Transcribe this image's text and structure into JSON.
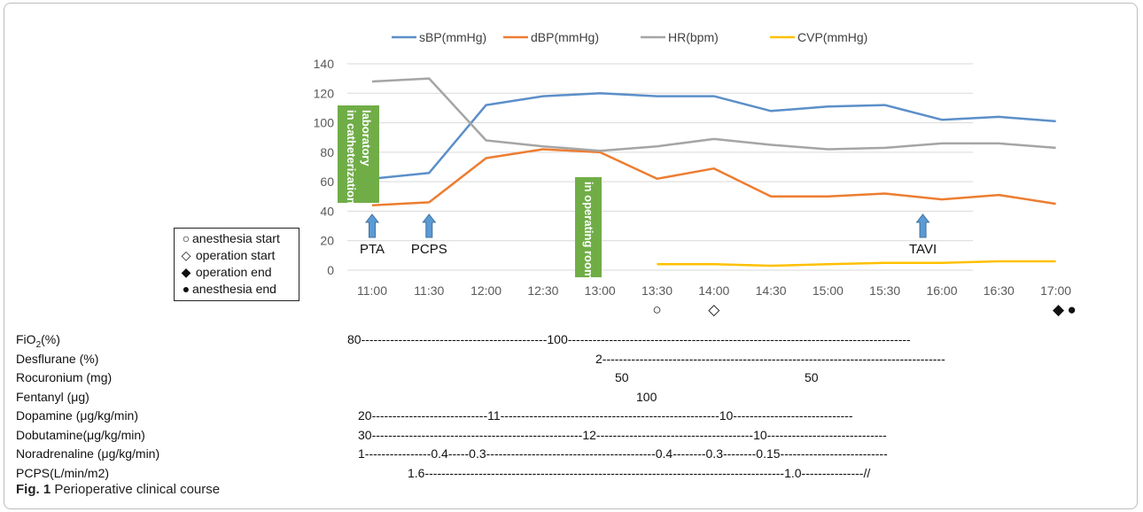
{
  "chart_data": {
    "type": "line",
    "categories": [
      "11:00",
      "11:30",
      "12:00",
      "12:30",
      "13:00",
      "13:30",
      "14:00",
      "14:30",
      "15:00",
      "15:30",
      "16:00",
      "16:30",
      "17:00"
    ],
    "y_ticks": [
      "0",
      "20",
      "40",
      "60",
      "80",
      "100",
      "120",
      "140"
    ],
    "ylim": [
      0,
      140
    ],
    "grid": true,
    "legend_position": "top",
    "series": [
      {
        "name": "sBP(mmHg)",
        "color": "#5b8fc9",
        "values": [
          62,
          66,
          112,
          118,
          120,
          118,
          118,
          108,
          111,
          112,
          102,
          104,
          101
        ]
      },
      {
        "name": "dBP(mmHg)",
        "color": "#ed7d31",
        "values": [
          44,
          46,
          76,
          82,
          80,
          62,
          69,
          50,
          50,
          52,
          48,
          51,
          45
        ]
      },
      {
        "name": "HR(bpm)",
        "color": "#a5a5a5",
        "values": [
          128,
          130,
          88,
          84,
          81,
          84,
          89,
          85,
          82,
          83,
          86,
          86,
          83
        ]
      },
      {
        "name": "CVP(mmHg)",
        "color": "#ffc000",
        "values": [
          null,
          null,
          null,
          null,
          null,
          4,
          4,
          3,
          4,
          5,
          5,
          6,
          6
        ]
      }
    ],
    "annotations": {
      "arrows": [
        {
          "label": "PTA",
          "at": "11:00",
          "value": 40
        },
        {
          "label": "PCPS",
          "at": "11:30",
          "value": 40
        },
        {
          "label": "TAVI",
          "at": "15:50",
          "value": 40
        }
      ],
      "boxes": [
        {
          "label": "in catheterization laboratory",
          "color": "#70ad47"
        },
        {
          "label": "in operating room",
          "color": "#70ad47"
        }
      ]
    },
    "event_markers": [
      {
        "symbol": "○",
        "name": "anesthesia start",
        "at": "13:30"
      },
      {
        "symbol": "◇",
        "name": "operation start",
        "at": "14:00"
      },
      {
        "symbol": "◆",
        "name": "operation end",
        "at": "17:00"
      },
      {
        "symbol": "●",
        "name": "anesthesia end",
        "at": "17:00"
      }
    ]
  },
  "marker_legend": [
    {
      "symbol": "○",
      "label": "anesthesia start"
    },
    {
      "symbol": "◇",
      "label": " operation start"
    },
    {
      "symbol": "◆",
      "label": " operation end"
    },
    {
      "symbol": "●",
      "label": "anesthesia end"
    }
  ],
  "table": {
    "rows": [
      {
        "label": "FiO2(%)",
        "text": "80---------------------------------------------100-----------------------------------------------------------------------------------"
      },
      {
        "label": "Desflurane (%)",
        "text": "2-----------------------------------------------------------------------------------"
      },
      {
        "label": "Rocuronium (mg)",
        "text": "50                                                   50"
      },
      {
        "label": "Fentanyl (μg)",
        "text": "100"
      },
      {
        "label": "Dopamine (μg/kg/min)",
        "text": "20----------------------------11-----------------------------------------------------10-----------------------------"
      },
      {
        "label": "Dobutamine(μg/kg/min)",
        "text": "30---------------------------------------------------12--------------------------------------10-----------------------------"
      },
      {
        "label": "Noradrenaline (μg/kg/min)",
        "text": "1----------------0.4-----0.3-----------------------------------------0.4--------0.3--------0.15--------------------------"
      },
      {
        "label": "PCPS(L/min/m2)",
        "text": "1.6---------------------------------------------------------------------------------------1.0---------------//"
      }
    ]
  },
  "caption": {
    "prefix": "Fig. 1",
    "text": " Perioperative clinical course"
  }
}
